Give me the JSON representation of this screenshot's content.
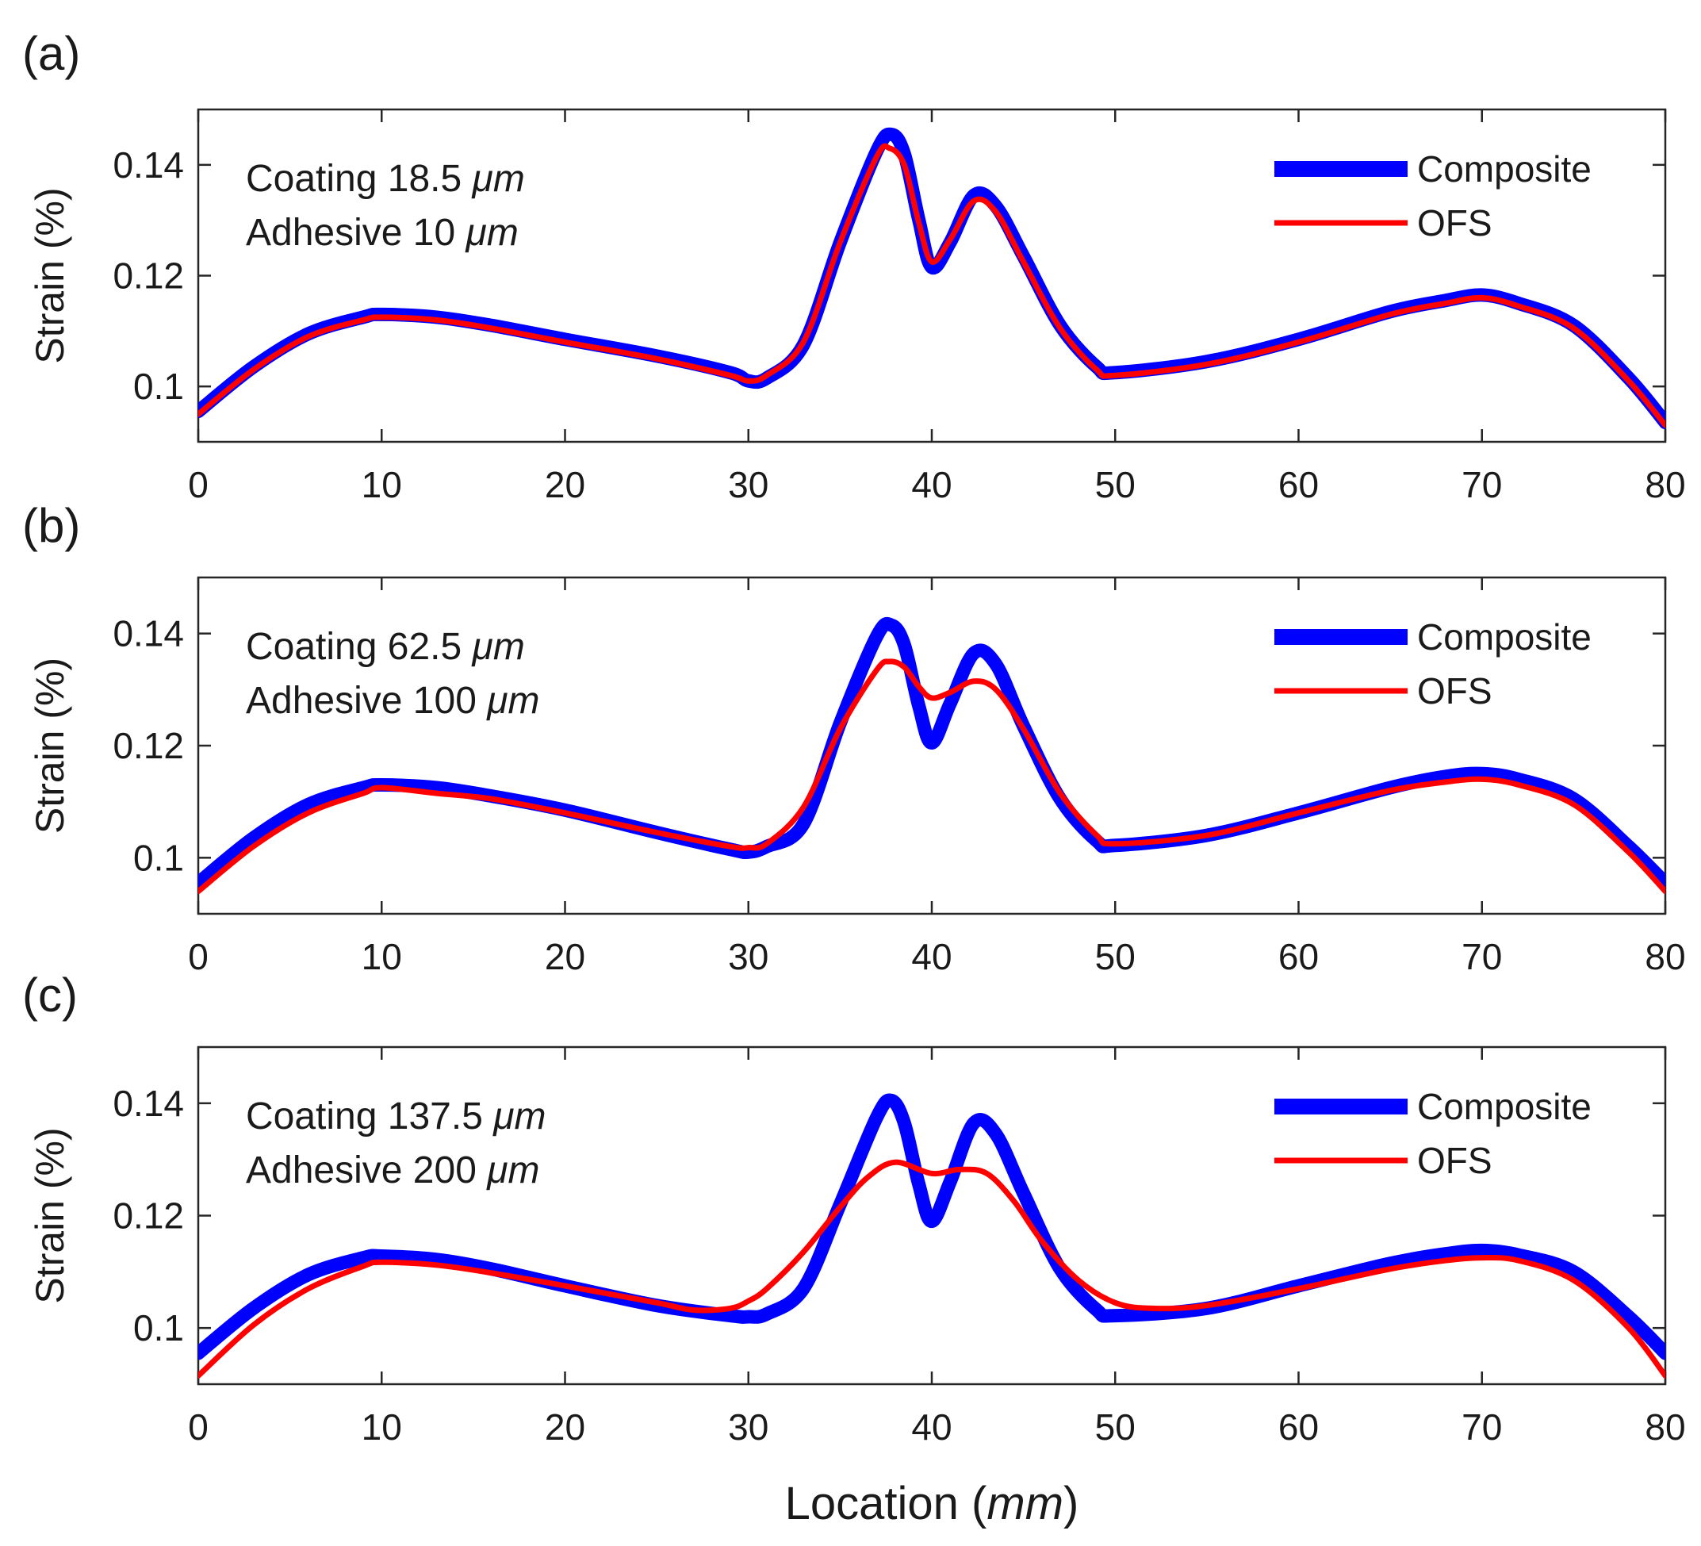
{
  "chart_data": [
    {
      "type": "line",
      "panel_label": "(a)",
      "xlabel": "",
      "ylabel": "Strain (%)",
      "xlim": [
        0,
        80
      ],
      "ylim": [
        0.09,
        0.15
      ],
      "xticks": [
        "0",
        "10",
        "20",
        "30",
        "40",
        "50",
        "60",
        "70",
        "80"
      ],
      "yticks": [
        "0.1",
        "0.12",
        "0.14"
      ],
      "annotation_lines": [
        {
          "text": "Coating 18.5 ",
          "unit": "μm"
        },
        {
          "text": "Adhesive 10 ",
          "unit": "μm"
        }
      ],
      "legend": [
        "Composite",
        "OFS"
      ],
      "series": [
        {
          "name": "Composite",
          "color": "#0000ff",
          "x": [
            0,
            3,
            6,
            9,
            10,
            13,
            16,
            20,
            25,
            29,
            30,
            31,
            33,
            35,
            37,
            37.8,
            38.5,
            39.3,
            40,
            41,
            42.3,
            43.5,
            45,
            47,
            49,
            50,
            55,
            60,
            65,
            68,
            70,
            72,
            75,
            78,
            80
          ],
          "y": [
            0.0955,
            0.1035,
            0.1095,
            0.1125,
            0.113,
            0.1125,
            0.111,
            0.1085,
            0.1055,
            0.1025,
            0.101,
            0.1015,
            0.1075,
            0.126,
            0.1425,
            0.1455,
            0.142,
            0.13,
            0.1215,
            0.126,
            0.1345,
            0.1325,
            0.1235,
            0.111,
            0.1035,
            0.1025,
            0.1045,
            0.1085,
            0.1135,
            0.1155,
            0.1165,
            0.115,
            0.111,
            0.1015,
            0.0935
          ]
        },
        {
          "name": "OFS",
          "color": "#ff0000",
          "x": [
            0,
            3,
            6,
            9,
            10,
            13,
            16,
            20,
            25,
            29,
            30,
            31,
            33,
            35,
            37,
            37.7,
            38.5,
            39.3,
            40,
            41,
            42.3,
            43.5,
            45,
            47,
            49,
            50,
            55,
            60,
            65,
            68,
            70,
            72,
            75,
            78,
            80
          ],
          "y": [
            0.095,
            0.103,
            0.109,
            0.112,
            0.1125,
            0.112,
            0.1105,
            0.108,
            0.105,
            0.102,
            0.101,
            0.102,
            0.108,
            0.126,
            0.1415,
            0.143,
            0.14,
            0.1295,
            0.1225,
            0.1265,
            0.1335,
            0.1315,
            0.1225,
            0.1105,
            0.103,
            0.102,
            0.104,
            0.108,
            0.113,
            0.115,
            0.116,
            0.1145,
            0.1105,
            0.101,
            0.093
          ]
        }
      ]
    },
    {
      "type": "line",
      "panel_label": "(b)",
      "xlabel": "",
      "ylabel": "Strain (%)",
      "xlim": [
        0,
        80
      ],
      "ylim": [
        0.09,
        0.15
      ],
      "xticks": [
        "0",
        "10",
        "20",
        "30",
        "40",
        "50",
        "60",
        "70",
        "80"
      ],
      "yticks": [
        "0.1",
        "0.12",
        "0.14"
      ],
      "annotation_lines": [
        {
          "text": "Coating 62.5 ",
          "unit": "μm"
        },
        {
          "text": "Adhesive 100 ",
          "unit": "μm"
        }
      ],
      "legend": [
        "Composite",
        "OFS"
      ],
      "series": [
        {
          "name": "Composite",
          "color": "#0000ff",
          "x": [
            0,
            3,
            6,
            9,
            10,
            13,
            16,
            20,
            25,
            29,
            30,
            31,
            33,
            35,
            37,
            37.8,
            38.5,
            39.3,
            40,
            41,
            42.3,
            43.5,
            45,
            47,
            49,
            50,
            55,
            60,
            65,
            68,
            70,
            72,
            75,
            78,
            80
          ],
          "y": [
            0.0955,
            0.1035,
            0.1095,
            0.1125,
            0.113,
            0.1125,
            0.111,
            0.1085,
            0.1045,
            0.1015,
            0.101,
            0.102,
            0.106,
            0.124,
            0.1395,
            0.1415,
            0.138,
            0.127,
            0.1205,
            0.1275,
            0.1365,
            0.1345,
            0.1235,
            0.1105,
            0.103,
            0.1022,
            0.104,
            0.108,
            0.1125,
            0.1145,
            0.115,
            0.114,
            0.1105,
            0.102,
            0.0955
          ]
        },
        {
          "name": "OFS",
          "color": "#ff0000",
          "x": [
            0,
            3,
            6,
            9,
            10,
            13,
            16,
            20,
            25,
            29,
            30,
            31,
            33,
            35,
            37,
            37.7,
            38.5,
            39.3,
            40,
            41,
            42.3,
            43.5,
            45,
            47,
            49,
            50,
            55,
            60,
            65,
            68,
            70,
            72,
            75,
            78,
            80
          ],
          "y": [
            0.094,
            0.102,
            0.108,
            0.1115,
            0.1125,
            0.1115,
            0.1105,
            0.108,
            0.1045,
            0.102,
            0.1018,
            0.1025,
            0.109,
            0.123,
            0.1335,
            0.135,
            0.134,
            0.1305,
            0.1285,
            0.1295,
            0.1315,
            0.13,
            0.123,
            0.1115,
            0.104,
            0.1025,
            0.104,
            0.108,
            0.112,
            0.1135,
            0.114,
            0.113,
            0.1095,
            0.101,
            0.094
          ]
        }
      ]
    },
    {
      "type": "line",
      "panel_label": "(c)",
      "xlabel": "Location (mm)",
      "ylabel": "Strain (%)",
      "xlim": [
        0,
        80
      ],
      "ylim": [
        0.09,
        0.15
      ],
      "xticks": [
        "0",
        "10",
        "20",
        "30",
        "40",
        "50",
        "60",
        "70",
        "80"
      ],
      "yticks": [
        "0.1",
        "0.12",
        "0.14"
      ],
      "annotation_lines": [
        {
          "text": "Coating 137.5 ",
          "unit": "μm"
        },
        {
          "text": "Adhesive 200 ",
          "unit": "μm"
        }
      ],
      "legend": [
        "Composite",
        "OFS"
      ],
      "series": [
        {
          "name": "Composite",
          "color": "#0000ff",
          "x": [
            0,
            3,
            6,
            9,
            10,
            13,
            16,
            20,
            25,
            29,
            30,
            31,
            33,
            35,
            37,
            37.8,
            38.5,
            39.3,
            40,
            41,
            42.3,
            43.5,
            45,
            47,
            49,
            50,
            55,
            60,
            65,
            68,
            70,
            72,
            75,
            78,
            80
          ],
          "y": [
            0.0955,
            0.1035,
            0.1095,
            0.1125,
            0.1128,
            0.1122,
            0.1105,
            0.1075,
            0.104,
            0.1022,
            0.102,
            0.1025,
            0.107,
            0.122,
            0.1375,
            0.1405,
            0.1365,
            0.1255,
            0.119,
            0.126,
            0.1365,
            0.1345,
            0.124,
            0.1105,
            0.1032,
            0.1022,
            0.1035,
            0.1075,
            0.1115,
            0.1132,
            0.1138,
            0.113,
            0.11,
            0.102,
            0.0955
          ]
        },
        {
          "name": "OFS",
          "color": "#ff0000",
          "x": [
            0,
            3,
            6,
            9,
            10,
            13,
            16,
            20,
            25,
            27,
            29,
            30,
            31,
            33,
            35,
            36.5,
            38,
            40,
            41.5,
            43,
            44.5,
            46,
            48,
            50,
            52,
            55,
            60,
            65,
            68,
            70,
            72,
            75,
            78,
            80
          ],
          "y": [
            0.0915,
            0.1005,
            0.107,
            0.111,
            0.1117,
            0.1112,
            0.1098,
            0.1075,
            0.1045,
            0.1032,
            0.1035,
            0.1048,
            0.107,
            0.1135,
            0.1215,
            0.1268,
            0.1295,
            0.1275,
            0.1282,
            0.1275,
            0.1225,
            0.1155,
            0.1085,
            0.1045,
            0.1035,
            0.104,
            0.107,
            0.1105,
            0.112,
            0.1125,
            0.112,
            0.1085,
            0.1,
            0.0915
          ]
        }
      ]
    }
  ]
}
